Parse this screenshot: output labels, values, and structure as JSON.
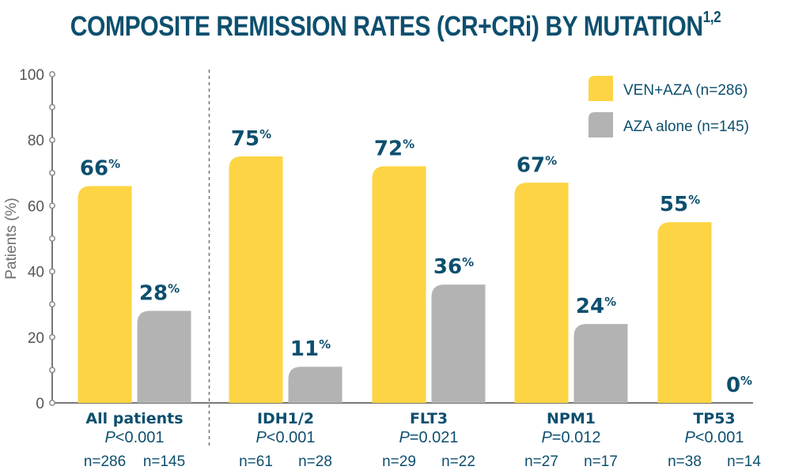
{
  "chart_data": {
    "type": "bar",
    "title": "COMPOSITE REMISSION RATES (CR+CRi) BY MUTATION",
    "title_superscript": "1,2",
    "xlabel": "",
    "ylabel": "Patients (%)",
    "ylim": [
      0,
      100
    ],
    "yticks": [
      0,
      20,
      40,
      60,
      80,
      100
    ],
    "yticks_minor": [
      10,
      30,
      50,
      70,
      90
    ],
    "grid": false,
    "legend_position": "top-right",
    "colors": {
      "ven_aza": "#fdd443",
      "aza_alone": "#b3b3b3",
      "text": "#0d4f6e",
      "axis": "#777777"
    },
    "categories": [
      "All patients",
      "IDH1/2",
      "FLT3",
      "NPM1",
      "TP53"
    ],
    "p_values": [
      "<0.001",
      "<0.001",
      "=0.021",
      "=0.012",
      "<0.001"
    ],
    "p_prefix": "P",
    "series": [
      {
        "name": "VEN+AZA (n=286)",
        "key": "ven_aza",
        "values": [
          66,
          75,
          72,
          67,
          55
        ],
        "n_labels": [
          "n=286",
          "n=61",
          "n=29",
          "n=27",
          "n=38"
        ]
      },
      {
        "name": "AZA alone (n=145)",
        "key": "aza_alone",
        "values": [
          28,
          11,
          36,
          24,
          0
        ],
        "n_labels": [
          "n=145",
          "n=28",
          "n=22",
          "n=17",
          "n=14"
        ]
      }
    ],
    "value_suffix": "%",
    "separator_after_category": 0
  }
}
